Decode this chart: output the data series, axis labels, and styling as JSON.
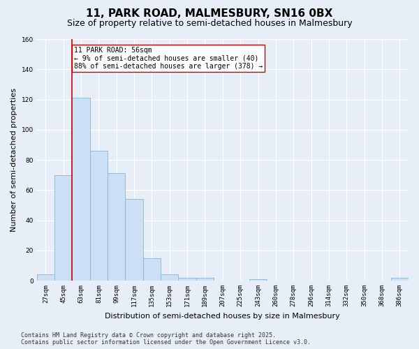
{
  "title": "11, PARK ROAD, MALMESBURY, SN16 0BX",
  "subtitle": "Size of property relative to semi-detached houses in Malmesbury",
  "xlabel": "Distribution of semi-detached houses by size in Malmesbury",
  "ylabel": "Number of semi-detached properties",
  "bins": [
    "27sqm",
    "45sqm",
    "63sqm",
    "81sqm",
    "99sqm",
    "117sqm",
    "135sqm",
    "153sqm",
    "171sqm",
    "189sqm",
    "207sqm",
    "225sqm",
    "243sqm",
    "260sqm",
    "278sqm",
    "296sqm",
    "314sqm",
    "332sqm",
    "350sqm",
    "368sqm",
    "386sqm"
  ],
  "values": [
    4,
    70,
    121,
    86,
    71,
    54,
    15,
    4,
    2,
    2,
    0,
    0,
    1,
    0,
    0,
    0,
    0,
    0,
    0,
    0,
    2
  ],
  "bar_color": "#cce0f5",
  "bar_edge_color": "#8ab4d8",
  "vline_color": "#cc0000",
  "annotation_text": "11 PARK ROAD: 56sqm\n← 9% of semi-detached houses are smaller (40)\n88% of semi-detached houses are larger (378) →",
  "annotation_box_color": "#ffffff",
  "annotation_box_edge": "#cc0000",
  "ylim": [
    0,
    160
  ],
  "yticks": [
    0,
    20,
    40,
    60,
    80,
    100,
    120,
    140,
    160
  ],
  "footer_line1": "Contains HM Land Registry data © Crown copyright and database right 2025.",
  "footer_line2": "Contains public sector information licensed under the Open Government Licence v3.0.",
  "bg_color": "#e8eef8",
  "plot_bg_color": "#e8eef8",
  "grid_color": "#ffffff",
  "title_fontsize": 11,
  "subtitle_fontsize": 9,
  "axis_fontsize": 8,
  "tick_fontsize": 6.5,
  "annotation_fontsize": 7,
  "footer_fontsize": 6
}
